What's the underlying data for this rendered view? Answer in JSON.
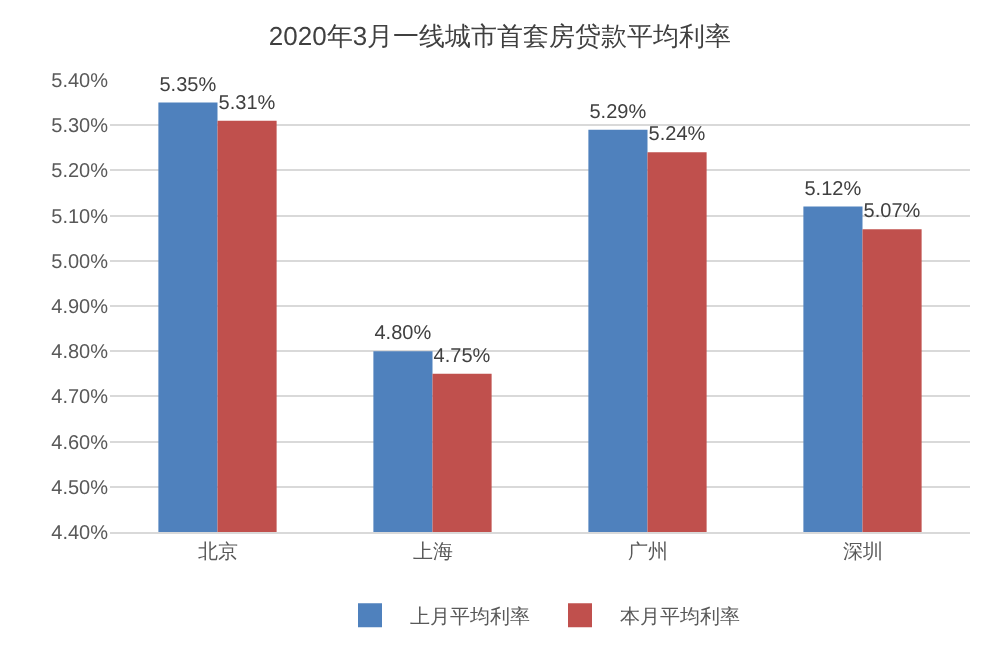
{
  "chart_data": {
    "type": "bar",
    "title": "2020年3月一线城市首套房贷款平均利率",
    "categories": [
      "北京",
      "上海",
      "广州",
      "深圳"
    ],
    "series": [
      {
        "name": "上月平均利率",
        "color": "#4f81bd",
        "values": [
          5.35,
          4.8,
          5.29,
          5.12
        ],
        "value_labels": [
          "5.35%",
          "4.80%",
          "5.29%",
          "5.12%"
        ]
      },
      {
        "name": "本月平均利率",
        "color": "#c0504d",
        "values": [
          5.31,
          4.75,
          5.24,
          5.07
        ],
        "value_labels": [
          "5.31%",
          "4.75%",
          "5.24%",
          "5.07%"
        ]
      }
    ],
    "ylim": [
      4.4,
      5.4
    ],
    "yticks": [
      {
        "value": 4.4,
        "label": "4.40%"
      },
      {
        "value": 4.5,
        "label": "4.50%"
      },
      {
        "value": 4.6,
        "label": "4.60%"
      },
      {
        "value": 4.7,
        "label": "4.70%"
      },
      {
        "value": 4.8,
        "label": "4.80%"
      },
      {
        "value": 4.9,
        "label": "4.90%"
      },
      {
        "value": 5.0,
        "label": "5.00%"
      },
      {
        "value": 5.1,
        "label": "5.10%"
      },
      {
        "value": 5.2,
        "label": "5.20%"
      },
      {
        "value": 5.3,
        "label": "5.30%"
      },
      {
        "value": 5.4,
        "label": "5.40%"
      }
    ],
    "grid": "y",
    "legend": "bottom"
  }
}
